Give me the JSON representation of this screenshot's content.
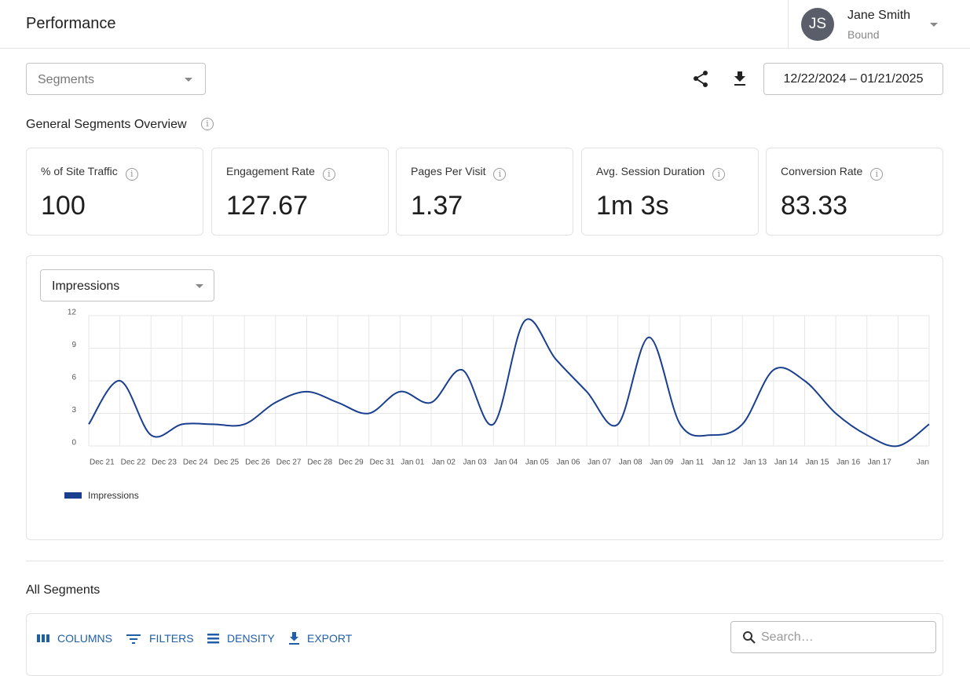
{
  "header": {
    "title": "Performance",
    "user": {
      "initials": "JS",
      "name": "Jane Smith",
      "org": "Bound"
    }
  },
  "toolbar": {
    "segment_select": "Segments",
    "date_range": "12/22/2024 – 01/21/2025"
  },
  "overview": {
    "title": "General Segments Overview",
    "metrics": [
      {
        "label": "% of Site Traffic",
        "value": "100"
      },
      {
        "label": "Engagement Rate",
        "value": "127.67"
      },
      {
        "label": "Pages Per Visit",
        "value": "1.37"
      },
      {
        "label": "Avg. Session Duration",
        "value": "1m 3s"
      },
      {
        "label": "Conversion Rate",
        "value": "83.33"
      }
    ]
  },
  "chart_controls": {
    "metric_select": "Impressions"
  },
  "chart_data": {
    "type": "line",
    "categories": [
      "Dec 21",
      "Dec 22",
      "Dec 23",
      "Dec 24",
      "Dec 25",
      "Dec 26",
      "Dec 27",
      "Dec 28",
      "Dec 29",
      "Dec 31",
      "Jan 01",
      "Jan 02",
      "Jan 03",
      "Jan 04",
      "Jan 05",
      "Jan 06",
      "Jan 07",
      "Jan 08",
      "Jan 09",
      "Jan 11",
      "Jan 12",
      "Jan 13",
      "Jan 14",
      "Jan 15",
      "Jan 16",
      "Jan 17",
      null,
      "Jan"
    ],
    "series": [
      {
        "name": "Impressions",
        "color": "#1a3f8f",
        "values": [
          2,
          6,
          1,
          2,
          2,
          2,
          4,
          5,
          4,
          3,
          5,
          4,
          7,
          2,
          11.5,
          8,
          5,
          2,
          10,
          2,
          1,
          2,
          7,
          6,
          3,
          1,
          0,
          2
        ]
      }
    ],
    "ylim": [
      0,
      12
    ],
    "yticks": [
      0,
      3,
      6,
      9,
      12
    ],
    "grid": true,
    "legend": "bottom-left"
  },
  "segments_table": {
    "title": "All Segments",
    "actions": [
      "COLUMNS",
      "FILTERS",
      "DENSITY",
      "EXPORT"
    ],
    "search_placeholder": "Search…"
  }
}
